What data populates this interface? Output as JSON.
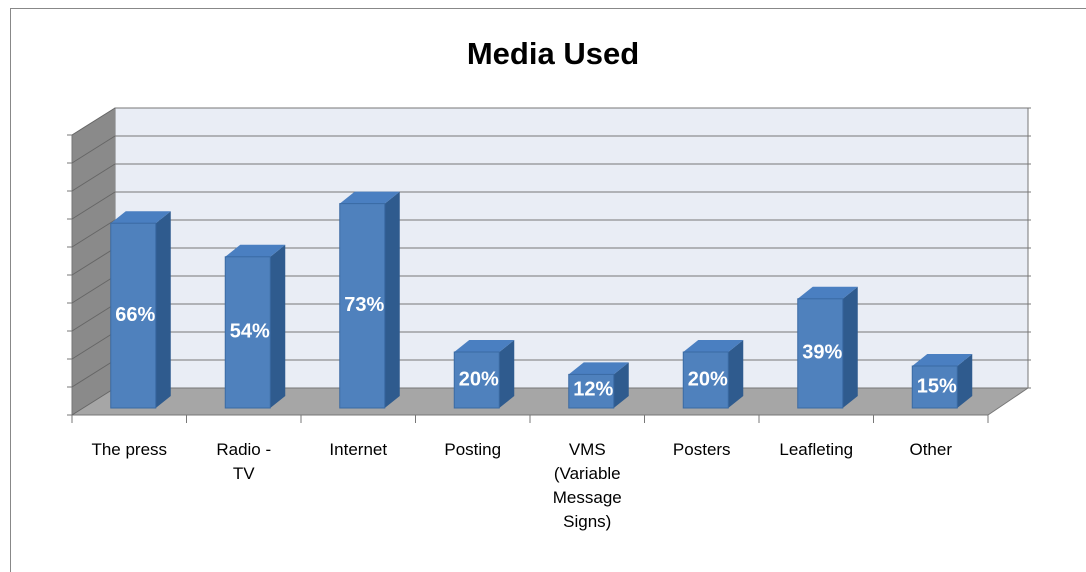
{
  "chart_data": {
    "type": "bar3d",
    "title": "Media Used",
    "categories": [
      "The press",
      "Radio - TV",
      "Internet",
      "Posting",
      "VMS (Variable Message Signs)",
      "Posters",
      "Leafleting",
      "Other"
    ],
    "values": [
      66,
      54,
      73,
      20,
      12,
      20,
      39,
      15
    ],
    "value_labels": [
      "66%",
      "54%",
      "73%",
      "20%",
      "12%",
      "20%",
      "39%",
      "15%"
    ],
    "color": "#4f81bd",
    "ylim": [
      0,
      100
    ],
    "yticks": [
      0,
      10,
      20,
      30,
      40,
      50,
      60,
      70,
      80,
      90,
      100
    ],
    "grid": true
  }
}
